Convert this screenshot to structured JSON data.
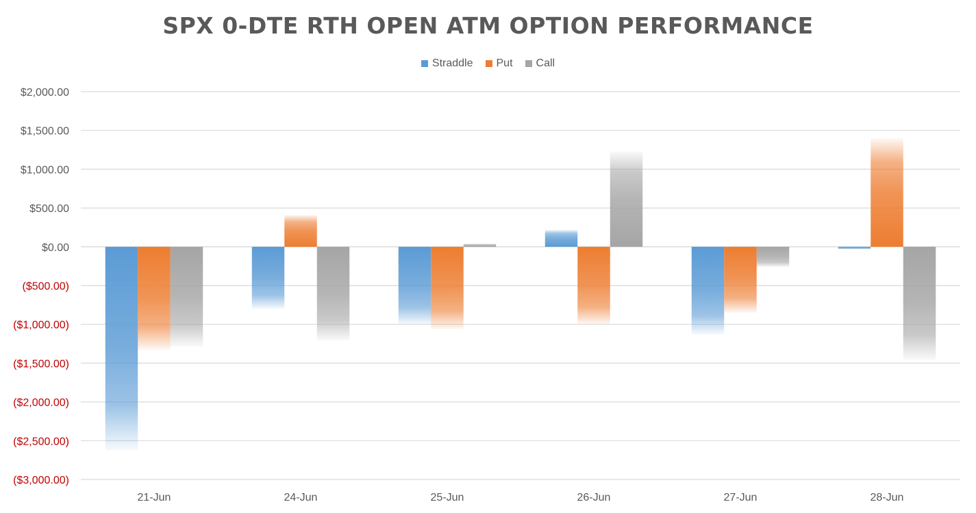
{
  "chart_data": {
    "type": "bar",
    "title": "SPX 0-DTE RTH OPEN ATM OPTION PERFORMANCE",
    "categories": [
      "21-Jun",
      "24-Jun",
      "25-Jun",
      "26-Jun",
      "27-Jun",
      "28-Jun"
    ],
    "series": [
      {
        "name": "Straddle",
        "color": "#5b9bd5",
        "values": [
          -2620,
          -800,
          -1000,
          220,
          -1130,
          -30
        ]
      },
      {
        "name": "Put",
        "color": "#ed7d31",
        "values": [
          -1330,
          410,
          -1060,
          -1000,
          -850,
          1400
        ]
      },
      {
        "name": "Call",
        "color": "#a5a5a5",
        "values": [
          -1290,
          -1210,
          40,
          1230,
          -260,
          -1460
        ]
      }
    ],
    "ylim": [
      -3000,
      2000
    ],
    "yticks": [
      2000,
      1500,
      1000,
      500,
      0,
      -500,
      -1000,
      -1500,
      -2000,
      -2500,
      -3000
    ],
    "ytick_labels": [
      "$2,000.00",
      "$1,500.00",
      "$1,000.00",
      "$500.00",
      "$0.00",
      "($500.00)",
      "($1,000.00)",
      "($1,500.00)",
      "($2,000.00)",
      "($2,500.00)",
      "($3,000.00)"
    ],
    "xlabel": "",
    "ylabel": "",
    "grid": true,
    "legend_position": "top",
    "negative_label_color": "#c00000",
    "positive_label_color": "#595959"
  }
}
